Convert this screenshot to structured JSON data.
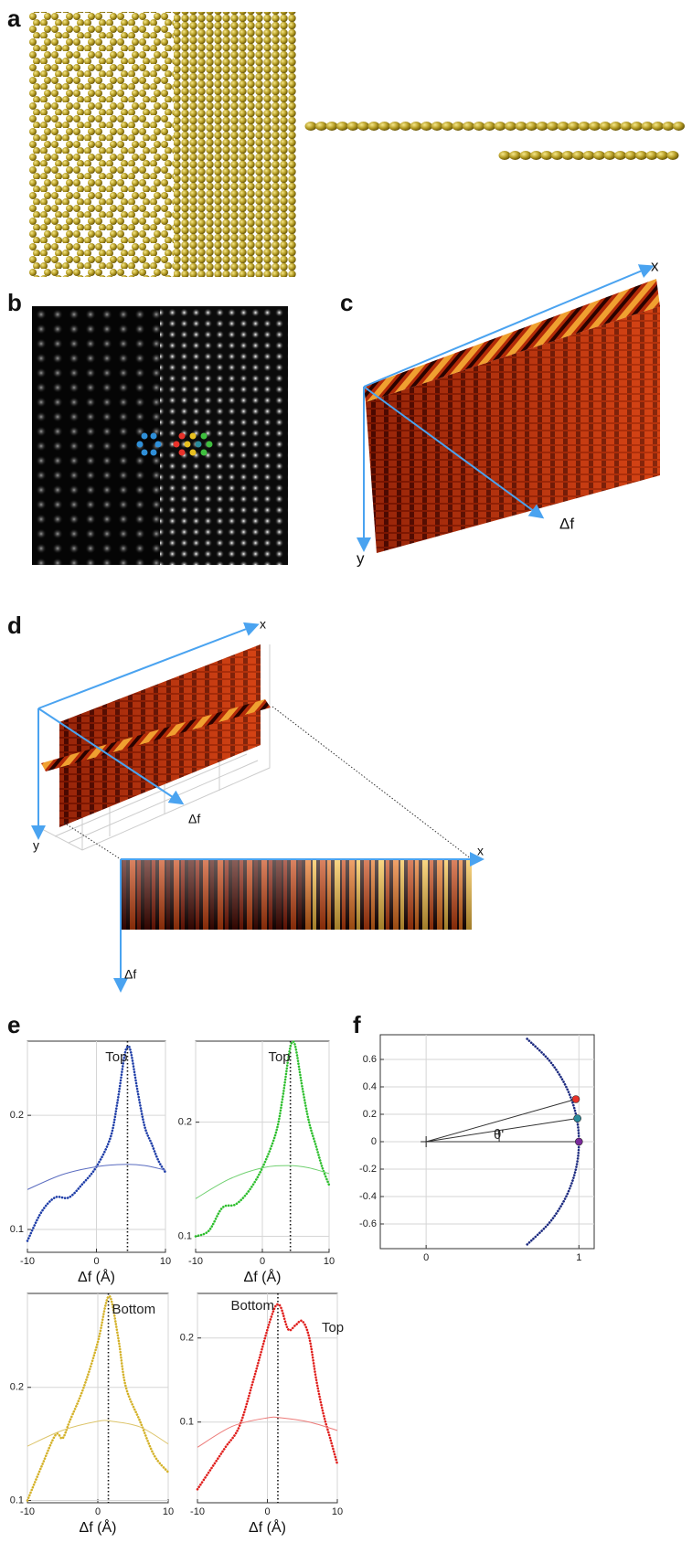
{
  "panel_labels": [
    "a",
    "b",
    "c",
    "d",
    "e",
    "f"
  ],
  "panel_c": {
    "axis_labels": [
      "x",
      "Δf",
      "y"
    ]
  },
  "panel_d": {
    "axis_labels": [
      "x",
      "Δf",
      "y"
    ],
    "slice_axis_labels": [
      "x",
      "Δf"
    ]
  },
  "chart_data": [
    {
      "type": "line",
      "xlabel": "Δf (Å)",
      "xlim": [
        -10,
        10
      ],
      "xticks": [
        -10,
        0,
        10
      ],
      "ylim": [
        0.08,
        0.265
      ],
      "yticks": [
        0.1,
        0.2
      ],
      "grid": true,
      "vline": 4.5,
      "annotations": [
        "Top"
      ],
      "series": [
        {
          "color": "#1f3ea8",
          "style": "dotted",
          "x": [
            -10,
            -8,
            -6,
            -4,
            -2,
            0,
            2,
            3,
            4,
            4.5,
            5,
            6,
            7,
            8,
            9,
            10
          ],
          "values": [
            0.09,
            0.115,
            0.128,
            0.128,
            0.14,
            0.155,
            0.18,
            0.21,
            0.25,
            0.26,
            0.255,
            0.22,
            0.19,
            0.175,
            0.16,
            0.15
          ]
        },
        {
          "color": "#5a6cc0",
          "style": "solid",
          "x": [
            -10,
            -5,
            0,
            4,
            7,
            10
          ],
          "values": [
            0.135,
            0.148,
            0.155,
            0.157,
            0.156,
            0.152
          ]
        }
      ]
    },
    {
      "type": "line",
      "xlabel": "Δf (Å)",
      "xlim": [
        -10,
        10
      ],
      "xticks": [
        -10,
        0,
        10
      ],
      "ylim": [
        0.086,
        0.271
      ],
      "yticks": [
        0.1,
        0.2
      ],
      "grid": true,
      "vline": 4.2,
      "annotations": [
        "Top"
      ],
      "series": [
        {
          "color": "#2fbf2f",
          "style": "dotted",
          "x": [
            -10,
            -8,
            -6,
            -4,
            -2,
            0,
            2,
            3,
            4,
            4.5,
            5,
            6,
            7,
            8,
            9,
            10
          ],
          "values": [
            0.1,
            0.105,
            0.125,
            0.128,
            0.14,
            0.16,
            0.19,
            0.22,
            0.26,
            0.27,
            0.265,
            0.23,
            0.2,
            0.18,
            0.16,
            0.145
          ]
        },
        {
          "color": "#6fd06f",
          "style": "solid",
          "x": [
            -10,
            -5,
            0,
            4,
            7,
            10
          ],
          "values": [
            0.133,
            0.15,
            0.16,
            0.162,
            0.16,
            0.155
          ]
        }
      ]
    },
    {
      "type": "line",
      "xlabel": "Δf (Å)",
      "xlim": [
        -10,
        10
      ],
      "xticks": [
        -10,
        0,
        10
      ],
      "ylim": [
        0.098,
        0.283
      ],
      "yticks": [
        0.1,
        0.2
      ],
      "grid": true,
      "vline": 1.5,
      "annotations": [
        "Bottom"
      ],
      "series": [
        {
          "color": "#d4b22a",
          "style": "dotted",
          "x": [
            -10,
            -8,
            -6,
            -5,
            -4,
            -2,
            0,
            1,
            1.5,
            2,
            3,
            4,
            6,
            8,
            10
          ],
          "values": [
            0.1,
            0.13,
            0.158,
            0.155,
            0.17,
            0.2,
            0.24,
            0.27,
            0.28,
            0.275,
            0.24,
            0.2,
            0.17,
            0.14,
            0.125
          ]
        },
        {
          "color": "#dcc46a",
          "style": "solid",
          "x": [
            -10,
            -5,
            0,
            2,
            6,
            10
          ],
          "values": [
            0.148,
            0.162,
            0.17,
            0.17,
            0.165,
            0.15
          ]
        }
      ]
    },
    {
      "type": "line",
      "xlabel": "Δf (Å)",
      "xlim": [
        -10,
        10
      ],
      "xticks": [
        -10,
        0,
        10
      ],
      "ylim": [
        0.004,
        0.253
      ],
      "yticks": [
        0.1,
        0.2
      ],
      "grid": true,
      "vline": 1.5,
      "annotations": [
        "Bottom",
        "Top"
      ],
      "series": [
        {
          "color": "#e0201e",
          "style": "dotted",
          "x": [
            -10,
            -8,
            -6,
            -4,
            -2,
            0,
            1,
            1.5,
            2,
            3,
            4,
            5,
            6,
            7,
            8,
            9,
            10
          ],
          "values": [
            0.02,
            0.045,
            0.07,
            0.095,
            0.15,
            0.21,
            0.235,
            0.24,
            0.235,
            0.21,
            0.215,
            0.22,
            0.2,
            0.15,
            0.11,
            0.08,
            0.05
          ]
        },
        {
          "color": "#ec7a78",
          "style": "solid",
          "x": [
            -10,
            -5,
            0,
            2,
            6,
            10
          ],
          "values": [
            0.07,
            0.095,
            0.105,
            0.105,
            0.1,
            0.09
          ]
        }
      ]
    },
    {
      "type": "scatter",
      "xlim": [
        -0.3,
        1.1
      ],
      "xticks": [
        0,
        1
      ],
      "ylim": [
        -0.78,
        0.78
      ],
      "yticks": [
        -0.6,
        -0.4,
        -0.2,
        0,
        0.2,
        0.4,
        0.6
      ],
      "grid": true,
      "annotations": [
        "θ'"
      ],
      "series": [
        {
          "color": "#1d2b80",
          "style": "dotted",
          "x": [
            0.661,
            0.8,
            0.893,
            0.954,
            0.989,
            1,
            0.989,
            0.954,
            0.893,
            0.8,
            0.661
          ],
          "values": [
            0.75,
            0.6,
            0.45,
            0.3,
            0.15,
            0,
            -0.15,
            -0.3,
            -0.45,
            -0.6,
            -0.75
          ]
        },
        {
          "color": "#e8322a",
          "style": "point",
          "x": [
            0.98
          ],
          "values": [
            0.31
          ]
        },
        {
          "color": "#2a8a9a",
          "style": "point",
          "x": [
            0.99
          ],
          "values": [
            0.17
          ]
        },
        {
          "color": "#7a2a9a",
          "style": "point",
          "x": [
            1
          ],
          "values": [
            0
          ]
        }
      ]
    }
  ]
}
